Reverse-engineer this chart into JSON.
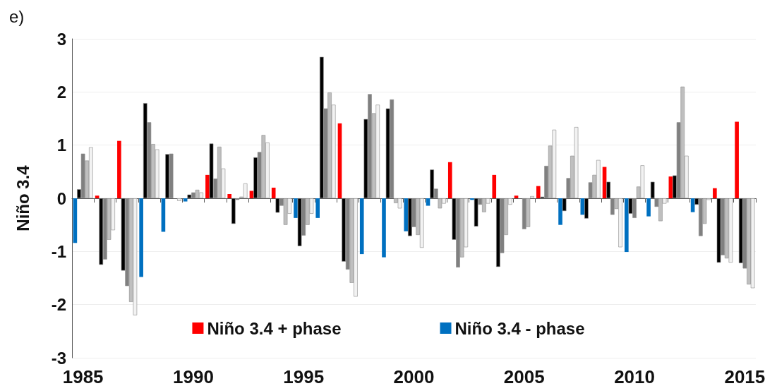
{
  "chart_data": {
    "type": "bar",
    "title": "e)",
    "ylabel": "Niño 3.4",
    "categories": [
      "1985",
      null,
      null,
      null,
      null,
      "1990",
      null,
      null,
      null,
      null,
      "1995",
      null,
      null,
      null,
      null,
      "2000",
      null,
      null,
      null,
      null,
      "2005",
      null,
      null,
      null,
      null,
      "2010",
      null,
      null,
      null,
      null,
      "2015"
    ],
    "series": [
      {
        "name": "Niño 3.4 + phase",
        "color": "#ff0000",
        "values": [
          null,
          0.05,
          1.08,
          null,
          null,
          null,
          0.44,
          0.08,
          0.14,
          0.2,
          null,
          null,
          1.41,
          null,
          null,
          null,
          null,
          0.68,
          null,
          0.44,
          0.05,
          0.23,
          null,
          null,
          0.59,
          null,
          null,
          0.41,
          null,
          0.19,
          1.44
        ]
      },
      {
        "name": "Niño 3.4 - phase",
        "color": "#0070c0",
        "values": [
          -0.84,
          null,
          null,
          -1.48,
          -0.63,
          -0.06,
          null,
          null,
          null,
          null,
          -0.37,
          -0.37,
          null,
          -1.05,
          -1.11,
          -0.62,
          -0.14,
          null,
          -0.03,
          null,
          null,
          null,
          -0.5,
          -0.31,
          null,
          -1.01,
          -0.34,
          null,
          -0.26,
          null,
          null
        ]
      },
      {
        "color": "#000000",
        "values": [
          0.17,
          -1.25,
          -1.36,
          1.79,
          0.83,
          0.07,
          1.03,
          -0.48,
          0.77,
          -0.27,
          -0.9,
          2.66,
          -1.19,
          1.49,
          1.69,
          -0.71,
          0.54,
          -0.78,
          -0.53,
          -1.29,
          null,
          0.03,
          -0.24,
          -0.38,
          0.31,
          -0.29,
          0.31,
          0.43,
          -0.12,
          -1.21,
          -1.22
        ]
      },
      {
        "color": "#808080",
        "values": [
          0.84,
          -1.15,
          -1.65,
          1.43,
          0.84,
          0.11,
          0.37,
          -0.03,
          0.87,
          -0.14,
          -0.7,
          1.69,
          -1.34,
          1.96,
          1.86,
          -0.54,
          0.18,
          -1.3,
          -0.12,
          -1.03,
          -0.58,
          0.61,
          0.38,
          0.3,
          -0.31,
          -0.37,
          -0.16,
          1.43,
          -0.71,
          -1.07,
          -1.32
        ]
      },
      {
        "color": "#bfbfbf",
        "values": [
          0.71,
          -0.78,
          -1.95,
          1.02,
          null,
          0.16,
          0.97,
          0.03,
          1.19,
          -0.5,
          -0.5,
          1.99,
          -1.59,
          1.6,
          -0.09,
          -0.69,
          -0.19,
          -1.11,
          -0.26,
          -0.69,
          -0.54,
          0.99,
          0.8,
          0.44,
          -0.2,
          0.22,
          -0.43,
          2.1,
          -0.48,
          -1.13,
          -1.62
        ]
      },
      {
        "color": "#f2f2f2",
        "values": [
          0.96,
          -0.6,
          -2.2,
          0.92,
          -0.05,
          0.11,
          0.56,
          0.28,
          1.05,
          -0.29,
          -0.29,
          1.76,
          -1.85,
          1.76,
          -0.19,
          -0.93,
          -0.1,
          -0.92,
          -0.1,
          -0.12,
          0.04,
          1.29,
          1.34,
          0.72,
          -0.92,
          0.62,
          -0.1,
          0.8,
          -0.03,
          -1.21,
          -1.69
        ]
      }
    ],
    "ylim": [
      -3,
      3
    ],
    "yticks": [
      -3,
      -2,
      -1,
      0,
      1,
      2,
      3
    ],
    "grid": "y",
    "legend": "bottom"
  }
}
